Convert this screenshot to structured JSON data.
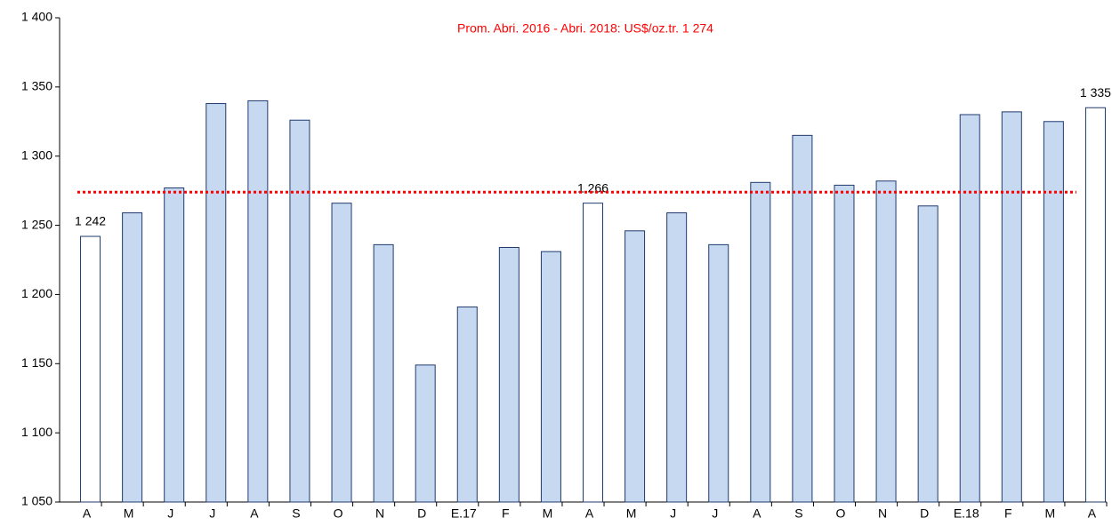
{
  "chart_data": {
    "type": "bar",
    "categories": [
      "A",
      "M",
      "J",
      "J",
      "A",
      "S",
      "O",
      "N",
      "D",
      "E.17",
      "F",
      "M",
      "A",
      "M",
      "J",
      "J",
      "A",
      "S",
      "O",
      "N",
      "D",
      "E.18",
      "F",
      "M",
      "A"
    ],
    "values": [
      1242,
      1259,
      1277,
      1338,
      1340,
      1326,
      1266,
      1236,
      1149,
      1191,
      1234,
      1231,
      1266,
      1246,
      1259,
      1236,
      1281,
      1315,
      1279,
      1282,
      1264,
      1330,
      1332,
      1325,
      1335
    ],
    "value_labels": [
      "1 242",
      null,
      null,
      null,
      null,
      null,
      null,
      null,
      null,
      null,
      null,
      null,
      "1 266",
      null,
      null,
      null,
      null,
      null,
      null,
      null,
      null,
      null,
      null,
      null,
      "1 335"
    ],
    "colors": [
      "#ffffff",
      "#c6d9f1",
      "#c6d9f1",
      "#c6d9f1",
      "#c6d9f1",
      "#c6d9f1",
      "#c6d9f1",
      "#c6d9f1",
      "#c6d9f1",
      "#c6d9f1",
      "#c6d9f1",
      "#c6d9f1",
      "#ffffff",
      "#c6d9f1",
      "#c6d9f1",
      "#c6d9f1",
      "#c6d9f1",
      "#c6d9f1",
      "#c6d9f1",
      "#c6d9f1",
      "#c6d9f1",
      "#c6d9f1",
      "#c6d9f1",
      "#c6d9f1",
      "#ffffff"
    ],
    "edge_color": "#1f3a6e",
    "ylim": [
      1050,
      1400
    ],
    "yticks": [
      {
        "value": 1050,
        "label": "1 050"
      },
      {
        "value": 1100,
        "label": "1 100"
      },
      {
        "value": 1150,
        "label": "1 150"
      },
      {
        "value": 1200,
        "label": "1 200"
      },
      {
        "value": 1250,
        "label": "1 250"
      },
      {
        "value": 1300,
        "label": "1 300"
      },
      {
        "value": 1350,
        "label": "1 350"
      },
      {
        "value": 1400,
        "label": "1 400"
      }
    ],
    "grid": false,
    "reference_line": {
      "value": 1274,
      "label": "Prom. Abri. 2016 - Abri. 2018: US$/oz.tr. 1 274",
      "color": "#ff0000"
    }
  }
}
